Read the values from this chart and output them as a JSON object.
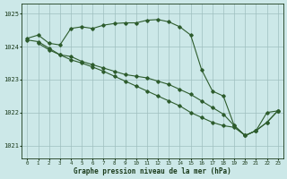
{
  "background_color": "#cce8e8",
  "grid_color": "#9fbfbf",
  "line_color": "#2d5c2d",
  "text_color": "#1a3a1a",
  "xlabel": "Graphe pression niveau de la mer (hPa)",
  "ylim": [
    1020.6,
    1025.3
  ],
  "xlim": [
    -0.5,
    23.5
  ],
  "yticks": [
    1021,
    1022,
    1023,
    1024,
    1025
  ],
  "xticks": [
    0,
    1,
    2,
    3,
    4,
    5,
    6,
    7,
    8,
    9,
    10,
    11,
    12,
    13,
    14,
    15,
    16,
    17,
    18,
    19,
    20,
    21,
    22,
    23
  ],
  "series1_x": [
    0,
    1,
    2,
    3,
    4,
    5,
    6,
    7,
    8,
    9,
    10,
    11,
    12,
    13,
    14,
    15,
    16,
    17,
    18,
    19,
    20,
    21,
    22,
    23
  ],
  "series1_y": [
    1024.25,
    1024.35,
    1024.1,
    1024.05,
    1024.55,
    1024.6,
    1024.55,
    1024.65,
    1024.7,
    1024.72,
    1024.72,
    1024.8,
    1024.82,
    1024.75,
    1024.6,
    1024.35,
    1023.3,
    1022.65,
    1022.5,
    1021.6,
    1021.3,
    1021.45,
    1022.0,
    1022.05
  ],
  "series2_x": [
    0,
    1,
    2,
    3,
    4,
    5,
    6,
    7,
    8,
    9,
    10,
    11,
    12,
    13,
    14,
    15,
    16,
    17,
    18,
    19,
    20,
    21,
    22,
    23
  ],
  "series2_y": [
    1024.2,
    1024.15,
    1023.95,
    1023.75,
    1023.7,
    1023.55,
    1023.45,
    1023.35,
    1023.25,
    1023.15,
    1023.1,
    1023.05,
    1022.95,
    1022.85,
    1022.7,
    1022.55,
    1022.35,
    1022.15,
    1021.95,
    1021.6,
    1021.3,
    1021.45,
    1021.7,
    1022.05
  ],
  "series3_x": [
    1,
    2,
    3,
    4,
    5,
    6,
    7,
    8,
    9,
    10,
    11,
    12,
    13,
    14,
    15,
    16,
    17,
    18,
    19,
    20,
    21,
    22,
    23
  ],
  "series3_y": [
    1024.1,
    1023.9,
    1023.75,
    1023.6,
    1023.5,
    1023.38,
    1023.25,
    1023.1,
    1022.95,
    1022.8,
    1022.65,
    1022.5,
    1022.35,
    1022.2,
    1022.0,
    1021.85,
    1021.7,
    1021.6,
    1021.55,
    1021.3,
    1021.45,
    1021.7,
    1022.05
  ]
}
